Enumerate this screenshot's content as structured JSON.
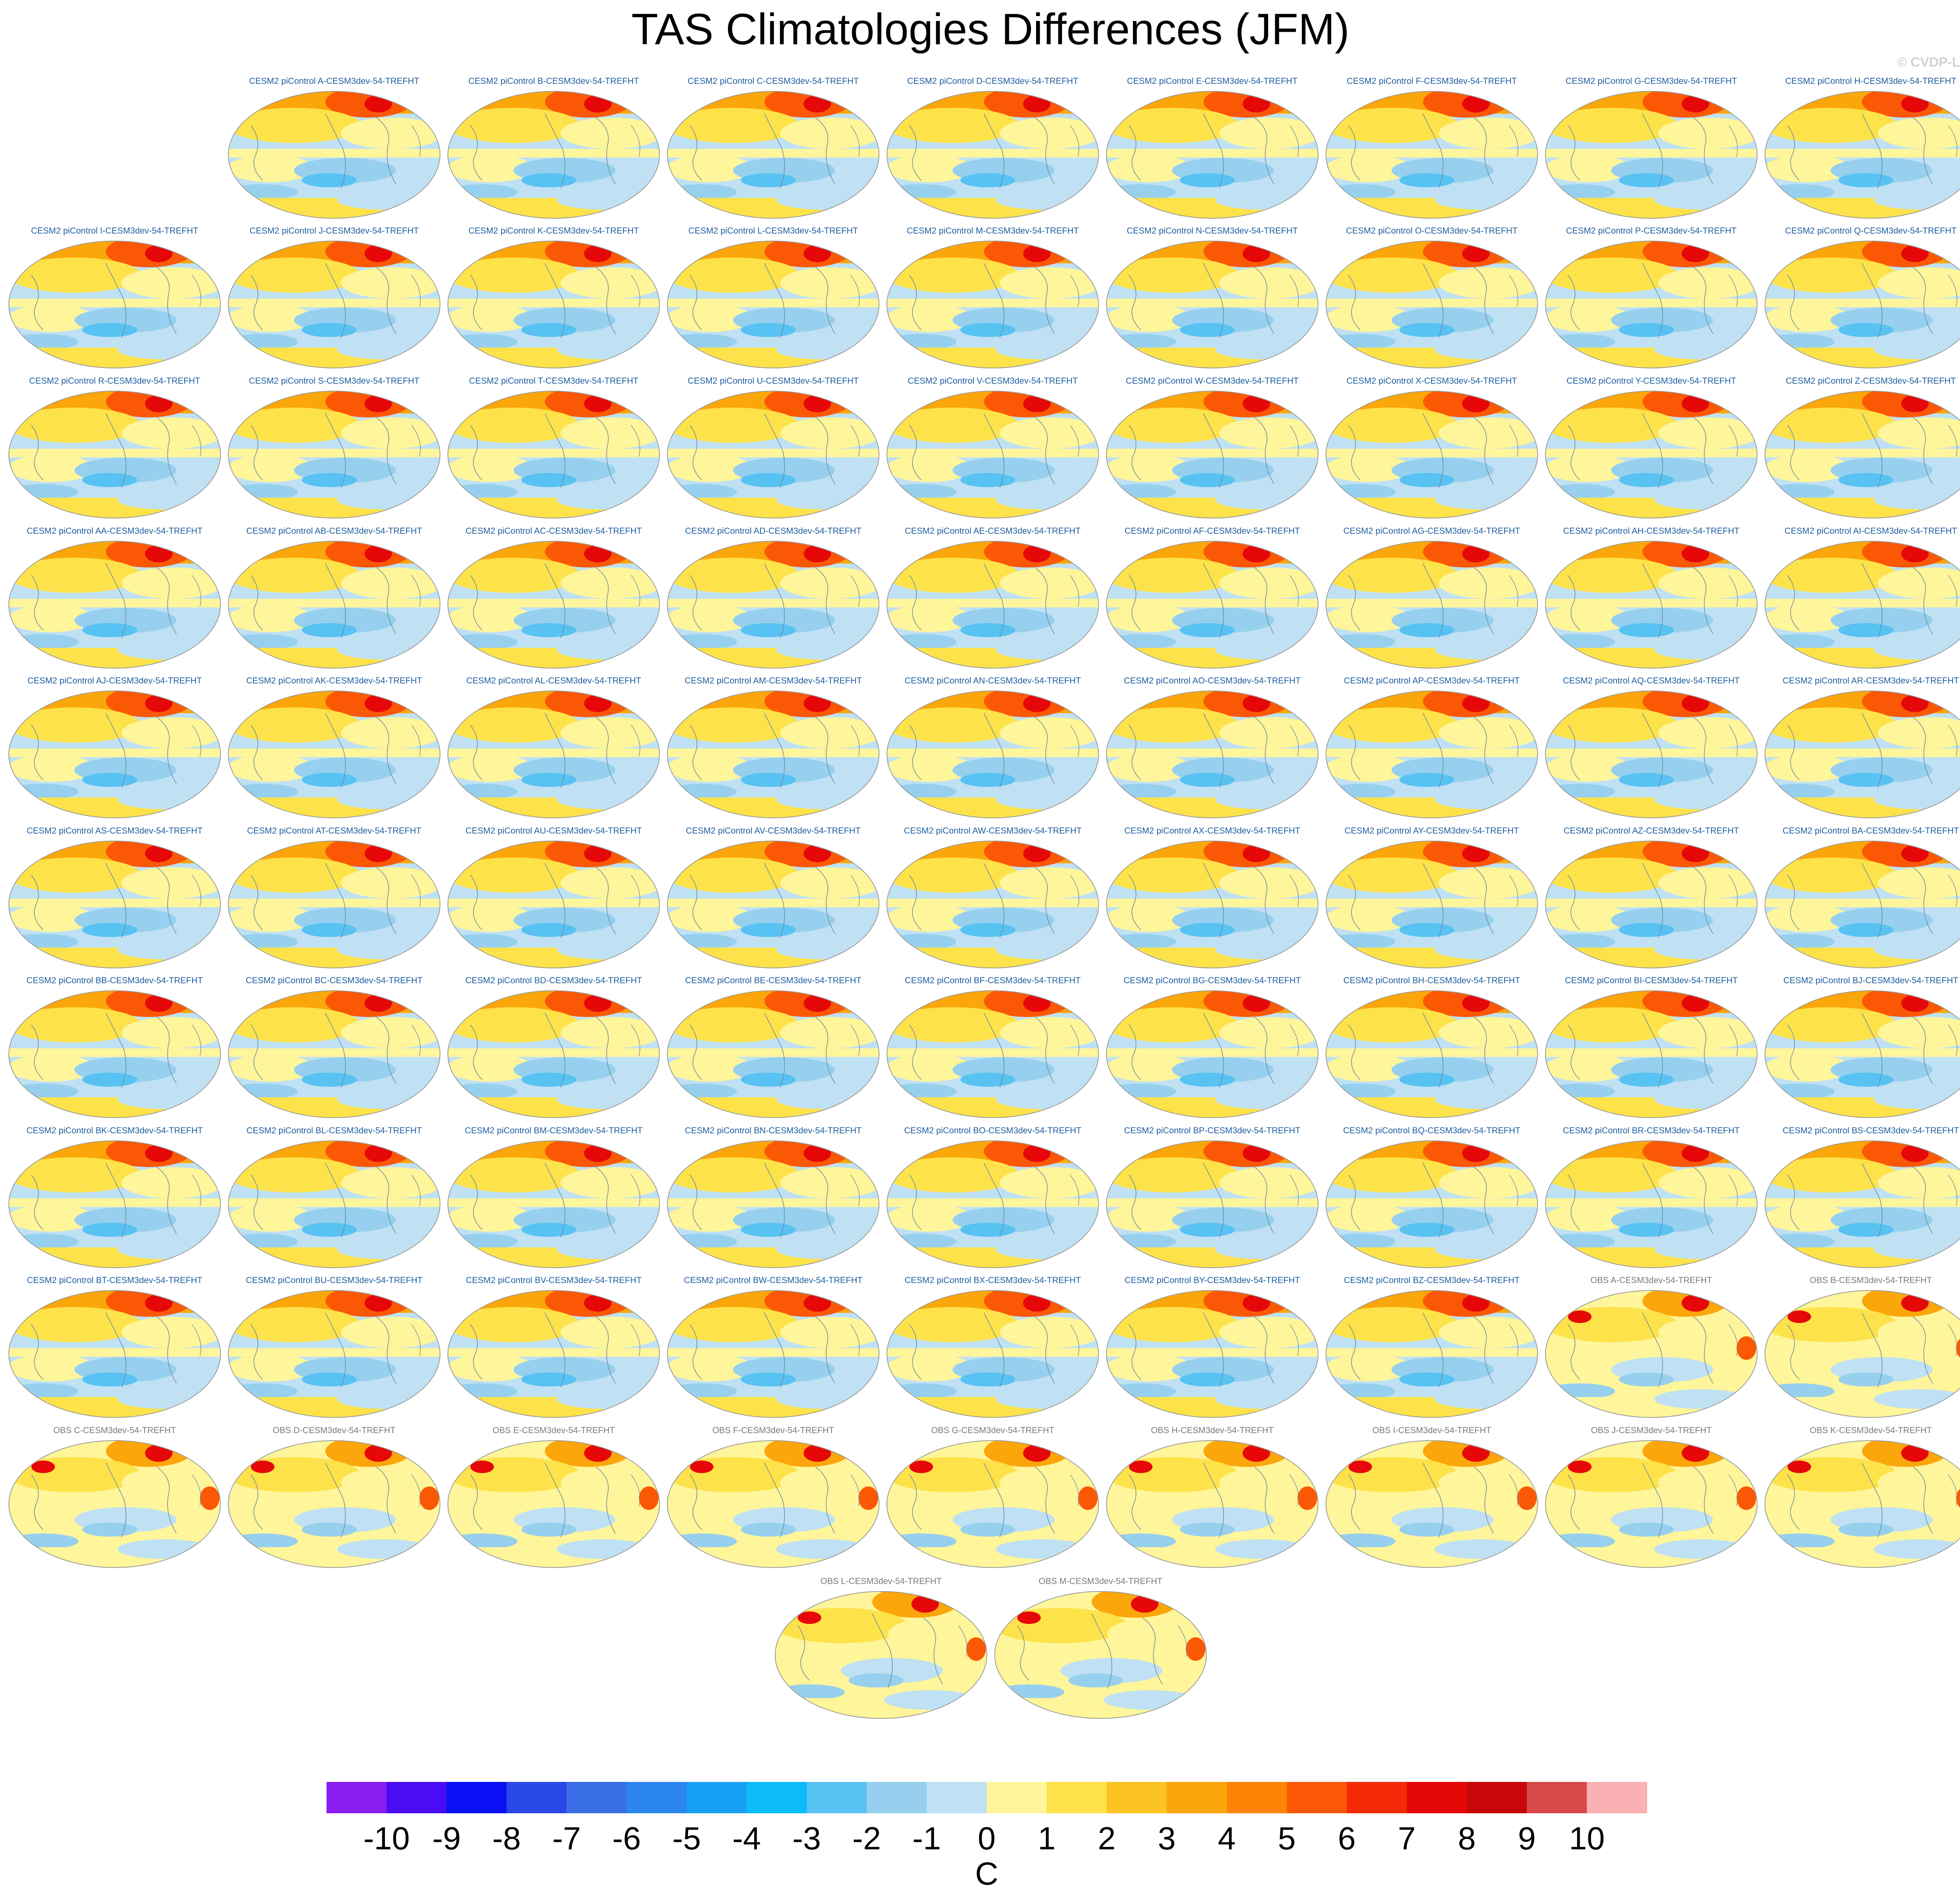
{
  "title": "TAS Climatologies Differences (JFM)",
  "watermark": "© CVDP-LE",
  "panel_title_colors": {
    "model": "#1f5fa0",
    "obs": "#7a7a7a"
  },
  "panels": [
    {
      "label": "CESM2 piControl A-CESM3dev-54-TREFHT",
      "kind": "model"
    },
    {
      "label": "CESM2 piControl B-CESM3dev-54-TREFHT",
      "kind": "model"
    },
    {
      "label": "CESM2 piControl C-CESM3dev-54-TREFHT",
      "kind": "model"
    },
    {
      "label": "CESM2 piControl D-CESM3dev-54-TREFHT",
      "kind": "model"
    },
    {
      "label": "CESM2 piControl E-CESM3dev-54-TREFHT",
      "kind": "model"
    },
    {
      "label": "CESM2 piControl F-CESM3dev-54-TREFHT",
      "kind": "model"
    },
    {
      "label": "CESM2 piControl G-CESM3dev-54-TREFHT",
      "kind": "model"
    },
    {
      "label": "CESM2 piControl H-CESM3dev-54-TREFHT",
      "kind": "model"
    },
    {
      "label": "CESM2 piControl I-CESM3dev-54-TREFHT",
      "kind": "model"
    },
    {
      "label": "CESM2 piControl J-CESM3dev-54-TREFHT",
      "kind": "model"
    },
    {
      "label": "CESM2 piControl K-CESM3dev-54-TREFHT",
      "kind": "model"
    },
    {
      "label": "CESM2 piControl L-CESM3dev-54-TREFHT",
      "kind": "model"
    },
    {
      "label": "CESM2 piControl M-CESM3dev-54-TREFHT",
      "kind": "model"
    },
    {
      "label": "CESM2 piControl N-CESM3dev-54-TREFHT",
      "kind": "model"
    },
    {
      "label": "CESM2 piControl O-CESM3dev-54-TREFHT",
      "kind": "model"
    },
    {
      "label": "CESM2 piControl P-CESM3dev-54-TREFHT",
      "kind": "model"
    },
    {
      "label": "CESM2 piControl Q-CESM3dev-54-TREFHT",
      "kind": "model"
    },
    {
      "label": "CESM2 piControl R-CESM3dev-54-TREFHT",
      "kind": "model"
    },
    {
      "label": "CESM2 piControl S-CESM3dev-54-TREFHT",
      "kind": "model"
    },
    {
      "label": "CESM2 piControl T-CESM3dev-54-TREFHT",
      "kind": "model"
    },
    {
      "label": "CESM2 piControl U-CESM3dev-54-TREFHT",
      "kind": "model"
    },
    {
      "label": "CESM2 piControl V-CESM3dev-54-TREFHT",
      "kind": "model"
    },
    {
      "label": "CESM2 piControl W-CESM3dev-54-TREFHT",
      "kind": "model"
    },
    {
      "label": "CESM2 piControl X-CESM3dev-54-TREFHT",
      "kind": "model"
    },
    {
      "label": "CESM2 piControl Y-CESM3dev-54-TREFHT",
      "kind": "model"
    },
    {
      "label": "CESM2 piControl Z-CESM3dev-54-TREFHT",
      "kind": "model"
    },
    {
      "label": "CESM2 piControl AA-CESM3dev-54-TREFHT",
      "kind": "model"
    },
    {
      "label": "CESM2 piControl AB-CESM3dev-54-TREFHT",
      "kind": "model"
    },
    {
      "label": "CESM2 piControl AC-CESM3dev-54-TREFHT",
      "kind": "model"
    },
    {
      "label": "CESM2 piControl AD-CESM3dev-54-TREFHT",
      "kind": "model"
    },
    {
      "label": "CESM2 piControl AE-CESM3dev-54-TREFHT",
      "kind": "model"
    },
    {
      "label": "CESM2 piControl AF-CESM3dev-54-TREFHT",
      "kind": "model"
    },
    {
      "label": "CESM2 piControl AG-CESM3dev-54-TREFHT",
      "kind": "model"
    },
    {
      "label": "CESM2 piControl AH-CESM3dev-54-TREFHT",
      "kind": "model"
    },
    {
      "label": "CESM2 piControl AI-CESM3dev-54-TREFHT",
      "kind": "model"
    },
    {
      "label": "CESM2 piControl AJ-CESM3dev-54-TREFHT",
      "kind": "model"
    },
    {
      "label": "CESM2 piControl AK-CESM3dev-54-TREFHT",
      "kind": "model"
    },
    {
      "label": "CESM2 piControl AL-CESM3dev-54-TREFHT",
      "kind": "model"
    },
    {
      "label": "CESM2 piControl AM-CESM3dev-54-TREFHT",
      "kind": "model"
    },
    {
      "label": "CESM2 piControl AN-CESM3dev-54-TREFHT",
      "kind": "model"
    },
    {
      "label": "CESM2 piControl AO-CESM3dev-54-TREFHT",
      "kind": "model"
    },
    {
      "label": "CESM2 piControl AP-CESM3dev-54-TREFHT",
      "kind": "model"
    },
    {
      "label": "CESM2 piControl AQ-CESM3dev-54-TREFHT",
      "kind": "model"
    },
    {
      "label": "CESM2 piControl AR-CESM3dev-54-TREFHT",
      "kind": "model"
    },
    {
      "label": "CESM2 piControl AS-CESM3dev-54-TREFHT",
      "kind": "model"
    },
    {
      "label": "CESM2 piControl AT-CESM3dev-54-TREFHT",
      "kind": "model"
    },
    {
      "label": "CESM2 piControl AU-CESM3dev-54-TREFHT",
      "kind": "model"
    },
    {
      "label": "CESM2 piControl AV-CESM3dev-54-TREFHT",
      "kind": "model"
    },
    {
      "label": "CESM2 piControl AW-CESM3dev-54-TREFHT",
      "kind": "model"
    },
    {
      "label": "CESM2 piControl AX-CESM3dev-54-TREFHT",
      "kind": "model"
    },
    {
      "label": "CESM2 piControl AY-CESM3dev-54-TREFHT",
      "kind": "model"
    },
    {
      "label": "CESM2 piControl AZ-CESM3dev-54-TREFHT",
      "kind": "model"
    },
    {
      "label": "CESM2 piControl BA-CESM3dev-54-TREFHT",
      "kind": "model"
    },
    {
      "label": "CESM2 piControl BB-CESM3dev-54-TREFHT",
      "kind": "model"
    },
    {
      "label": "CESM2 piControl BC-CESM3dev-54-TREFHT",
      "kind": "model"
    },
    {
      "label": "CESM2 piControl BD-CESM3dev-54-TREFHT",
      "kind": "model"
    },
    {
      "label": "CESM2 piControl BE-CESM3dev-54-TREFHT",
      "kind": "model"
    },
    {
      "label": "CESM2 piControl BF-CESM3dev-54-TREFHT",
      "kind": "model"
    },
    {
      "label": "CESM2 piControl BG-CESM3dev-54-TREFHT",
      "kind": "model"
    },
    {
      "label": "CESM2 piControl BH-CESM3dev-54-TREFHT",
      "kind": "model"
    },
    {
      "label": "CESM2 piControl BI-CESM3dev-54-TREFHT",
      "kind": "model"
    },
    {
      "label": "CESM2 piControl BJ-CESM3dev-54-TREFHT",
      "kind": "model"
    },
    {
      "label": "CESM2 piControl BK-CESM3dev-54-TREFHT",
      "kind": "model"
    },
    {
      "label": "CESM2 piControl BL-CESM3dev-54-TREFHT",
      "kind": "model"
    },
    {
      "label": "CESM2 piControl BM-CESM3dev-54-TREFHT",
      "kind": "model"
    },
    {
      "label": "CESM2 piControl BN-CESM3dev-54-TREFHT",
      "kind": "model"
    },
    {
      "label": "CESM2 piControl BO-CESM3dev-54-TREFHT",
      "kind": "model"
    },
    {
      "label": "CESM2 piControl BP-CESM3dev-54-TREFHT",
      "kind": "model"
    },
    {
      "label": "CESM2 piControl BQ-CESM3dev-54-TREFHT",
      "kind": "model"
    },
    {
      "label": "CESM2 piControl BR-CESM3dev-54-TREFHT",
      "kind": "model"
    },
    {
      "label": "CESM2 piControl BS-CESM3dev-54-TREFHT",
      "kind": "model"
    },
    {
      "label": "CESM2 piControl BT-CESM3dev-54-TREFHT",
      "kind": "model"
    },
    {
      "label": "CESM2 piControl BU-CESM3dev-54-TREFHT",
      "kind": "model"
    },
    {
      "label": "CESM2 piControl BV-CESM3dev-54-TREFHT",
      "kind": "model"
    },
    {
      "label": "CESM2 piControl BW-CESM3dev-54-TREFHT",
      "kind": "model"
    },
    {
      "label": "CESM2 piControl BX-CESM3dev-54-TREFHT",
      "kind": "model"
    },
    {
      "label": "CESM2 piControl BY-CESM3dev-54-TREFHT",
      "kind": "model"
    },
    {
      "label": "CESM2 piControl BZ-CESM3dev-54-TREFHT",
      "kind": "model"
    },
    {
      "label": "OBS A-CESM3dev-54-TREFHT",
      "kind": "obs"
    },
    {
      "label": "OBS B-CESM3dev-54-TREFHT",
      "kind": "obs"
    },
    {
      "label": "OBS C-CESM3dev-54-TREFHT",
      "kind": "obs"
    },
    {
      "label": "OBS D-CESM3dev-54-TREFHT",
      "kind": "obs"
    },
    {
      "label": "OBS E-CESM3dev-54-TREFHT",
      "kind": "obs"
    },
    {
      "label": "OBS F-CESM3dev-54-TREFHT",
      "kind": "obs"
    },
    {
      "label": "OBS G-CESM3dev-54-TREFHT",
      "kind": "obs"
    },
    {
      "label": "OBS H-CESM3dev-54-TREFHT",
      "kind": "obs"
    },
    {
      "label": "OBS I-CESM3dev-54-TREFHT",
      "kind": "obs"
    },
    {
      "label": "OBS J-CESM3dev-54-TREFHT",
      "kind": "obs"
    },
    {
      "label": "OBS K-CESM3dev-54-TREFHT",
      "kind": "obs"
    },
    {
      "label": "OBS L-CESM3dev-54-TREFHT",
      "kind": "obs"
    },
    {
      "label": "OBS M-CESM3dev-54-TREFHT",
      "kind": "obs"
    }
  ],
  "colorbar": {
    "unit": "C",
    "labels": [
      "-10",
      "-9",
      "-8",
      "-7",
      "-6",
      "-5",
      "-4",
      "-3",
      "-2",
      "-1",
      "0",
      "1",
      "2",
      "3",
      "4",
      "5",
      "6",
      "7",
      "8",
      "9",
      "10"
    ],
    "colors": [
      "#8a1ef0",
      "#4a0cf5",
      "#0a10f5",
      "#2a48e8",
      "#3a6ee6",
      "#2a86ee",
      "#18a0f5",
      "#0bbcf8",
      "#58c2f2",
      "#96d0ee",
      "#bfe1f3",
      "#fff59a",
      "#fde24a",
      "#fbc422",
      "#fba60a",
      "#fb8406",
      "#fb5806",
      "#f52a06",
      "#e60808",
      "#c80808",
      "#d84848",
      "#fbb0b4"
    ]
  },
  "map_colors": {
    "ocean_cool": "#bfe1f3",
    "cool_mid": "#96d0ee",
    "cool_deep": "#58c2f2",
    "warm_light": "#fff59a",
    "warm_mid": "#fde24a",
    "warm_orange": "#fba60a",
    "warm_deep": "#fb5806",
    "hot": "#e60808",
    "coast": "#6d8aa0",
    "outline": "#9a9a9a"
  }
}
